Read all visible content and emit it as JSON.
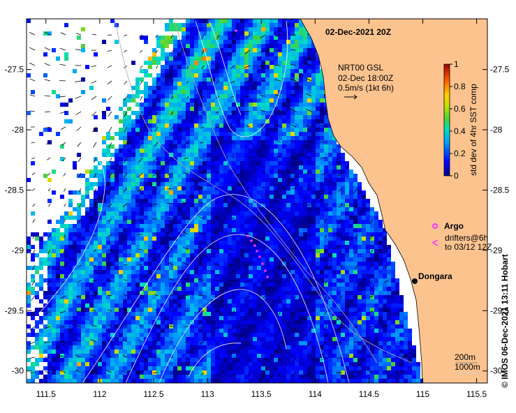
{
  "map": {
    "timestamp": "02-Dec-2021 20Z",
    "current_source": {
      "line1": "NRT00 GSL",
      "line2": "02-Dec 18:00Z",
      "line3": "0.5m/s (1kt 6h)"
    },
    "place_label": "Dongara",
    "legend": {
      "argo": "Argo",
      "drifters_line1": "drifters@6h",
      "drifters_line2": "to 03/12 12Z"
    },
    "isobaths": {
      "shallow": "200m",
      "deep": "1000m"
    },
    "credit": "© IMOS 06-Dec-2021 13:11 Hobart",
    "colorbar": {
      "title": "std dev of 4hr SST comp",
      "ticks": [
        "1",
        "0.8",
        "0.6",
        "0.4",
        "0.2",
        "0"
      ]
    },
    "axes": {
      "lon_ticks": [
        "111.5",
        "112",
        "112.5",
        "113",
        "113.5",
        "114",
        "114.5",
        "115",
        "115.5"
      ],
      "lat_ticks": [
        "-27.5",
        "-28",
        "-28.5",
        "-29",
        "-29.5",
        "-30"
      ],
      "lon_range": [
        111.32,
        115.6
      ],
      "lat_range": [
        -27.08,
        -30.1
      ]
    },
    "colors": {
      "land": "#fcc38f",
      "ocean_background": "#ffffff",
      "field_base": "#0a1a8c",
      "argo_marker": "#ff33ff",
      "contour": "#ffffff"
    }
  }
}
